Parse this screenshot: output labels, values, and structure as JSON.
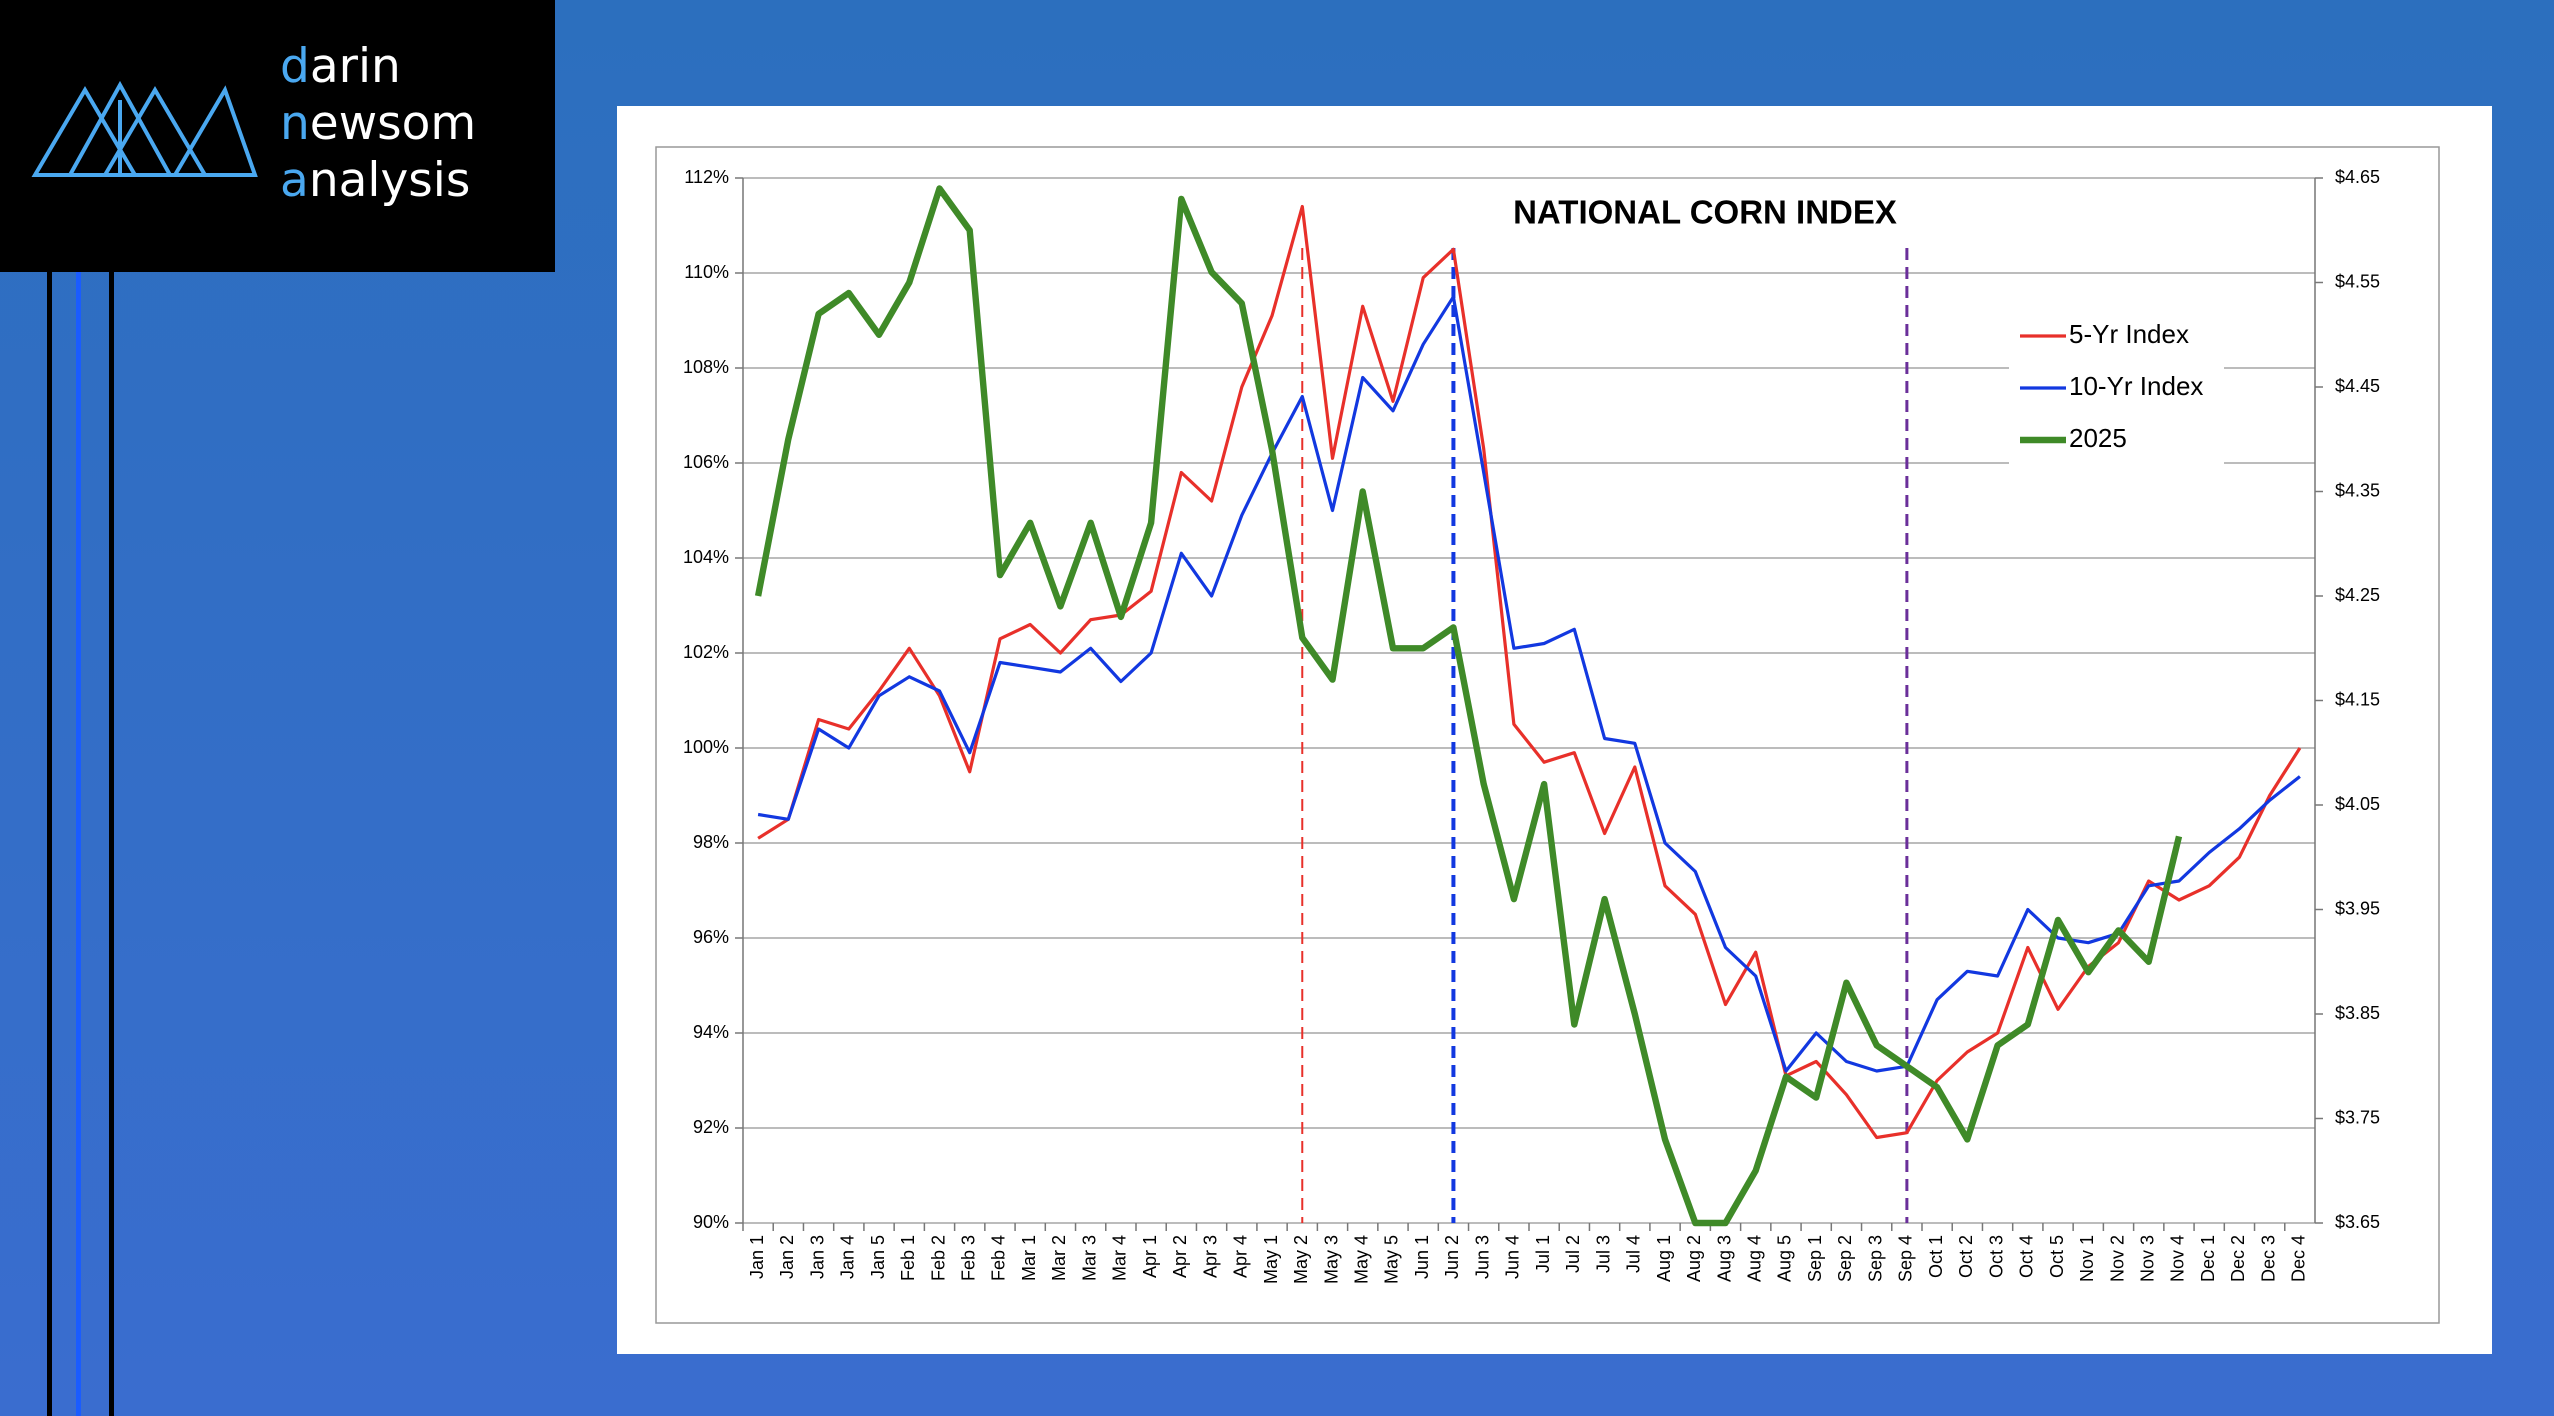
{
  "brand": [
    "darin",
    "newsom",
    "analysis"
  ],
  "chart_data": {
    "type": "line",
    "title": "NATIONAL CORN INDEX",
    "categories": [
      "Jan 1",
      "Jan 2",
      "Jan 3",
      "Jan 4",
      "Jan 5",
      "Feb 1",
      "Feb 2",
      "Feb 3",
      "Feb 4",
      "Mar 1",
      "Mar 2",
      "Mar 3",
      "Mar 4",
      "Apr 1",
      "Apr 2",
      "Apr 3",
      "Apr 4",
      "May 1",
      "May 2",
      "May 3",
      "May 4",
      "May 5",
      "Jun 1",
      "Jun 2",
      "Jun 3",
      "Jun 4",
      "Jul 1",
      "Jul 2",
      "Jul 3",
      "Jul 4",
      "Aug 1",
      "Aug 2",
      "Aug 3",
      "Aug 4",
      "Aug 5",
      "Sep 1",
      "Sep 2",
      "Sep 3",
      "Sep 4",
      "Oct 1",
      "Oct 2",
      "Oct 3",
      "Oct 4",
      "Oct 5",
      "Nov 1",
      "Nov 2",
      "Nov 3",
      "Nov 4",
      "Dec 1",
      "Dec 2",
      "Dec 3",
      "Dec 4"
    ],
    "series": [
      {
        "name": "5-Yr Index",
        "color": "#e8302a",
        "width": 2,
        "values": [
          98.1,
          98.5,
          100.6,
          100.4,
          101.2,
          102.1,
          101.1,
          99.5,
          102.3,
          102.6,
          102.0,
          102.7,
          102.8,
          103.3,
          105.8,
          105.2,
          107.6,
          109.1,
          111.4,
          106.1,
          109.3,
          107.3,
          109.9,
          110.5,
          106.3,
          100.5,
          99.7,
          99.9,
          98.2,
          99.6,
          97.1,
          96.5,
          94.6,
          95.7,
          93.1,
          93.4,
          92.7,
          91.8,
          91.9,
          93.0,
          93.6,
          94.0,
          95.8,
          94.5,
          95.4,
          95.9,
          97.2,
          96.8,
          97.1,
          97.7,
          99.0,
          100.0
        ]
      },
      {
        "name": "10-Yr Index",
        "color": "#1238e0",
        "width": 2,
        "values": [
          98.6,
          98.5,
          100.4,
          100.0,
          101.1,
          101.5,
          101.2,
          99.9,
          101.8,
          101.7,
          101.6,
          102.1,
          101.4,
          102.0,
          104.1,
          103.2,
          104.9,
          106.2,
          107.4,
          105.0,
          107.8,
          107.1,
          108.5,
          109.5,
          105.8,
          102.1,
          102.2,
          102.5,
          100.2,
          100.1,
          98.0,
          97.4,
          95.8,
          95.2,
          93.2,
          94.0,
          93.4,
          93.2,
          93.3,
          94.7,
          95.3,
          95.2,
          96.6,
          96.0,
          95.9,
          96.1,
          97.1,
          97.2,
          97.8,
          98.3,
          98.9,
          99.4
        ]
      },
      {
        "name": "2025",
        "color": "#3f8a28",
        "width": 4,
        "axis": "y2",
        "values": [
          4.25,
          4.4,
          4.52,
          4.54,
          4.5,
          4.55,
          4.64,
          4.6,
          4.27,
          4.32,
          4.24,
          4.32,
          4.23,
          4.32,
          4.63,
          4.56,
          4.53,
          4.39,
          4.21,
          4.17,
          4.35,
          4.2,
          4.2,
          4.22,
          4.07,
          3.96,
          4.07,
          3.84,
          3.96,
          3.85,
          3.73,
          3.65,
          3.65,
          3.7,
          3.79,
          3.77,
          3.88,
          3.82,
          3.8,
          3.78,
          3.73,
          3.82,
          3.84,
          3.94,
          3.89,
          3.93,
          3.9,
          4.02,
          null,
          null,
          null,
          null
        ]
      }
    ],
    "ylim": [
      90,
      112
    ],
    "yticks": [
      {
        "value": 90,
        "label": "90%"
      },
      {
        "value": 92,
        "label": "92%"
      },
      {
        "value": 94,
        "label": "94%"
      },
      {
        "value": 96,
        "label": "96%"
      },
      {
        "value": 98,
        "label": "98%"
      },
      {
        "value": 100,
        "label": "100%"
      },
      {
        "value": 102,
        "label": "102%"
      },
      {
        "value": 104,
        "label": "104%"
      },
      {
        "value": 106,
        "label": "106%"
      },
      {
        "value": 108,
        "label": "108%"
      },
      {
        "value": 110,
        "label": "110%"
      },
      {
        "value": 112,
        "label": "112%"
      }
    ],
    "y2lim": [
      3.65,
      4.65
    ],
    "y2ticks": [
      {
        "value": 3.65,
        "label": "$3.65"
      },
      {
        "value": 3.75,
        "label": "$3.75"
      },
      {
        "value": 3.85,
        "label": "$3.85"
      },
      {
        "value": 3.95,
        "label": "$3.95"
      },
      {
        "value": 4.05,
        "label": "$4.05"
      },
      {
        "value": 4.15,
        "label": "$4.15"
      },
      {
        "value": 4.25,
        "label": "$4.25"
      },
      {
        "value": 4.35,
        "label": "$4.35"
      },
      {
        "value": 4.45,
        "label": "$4.45"
      },
      {
        "value": 4.55,
        "label": "$4.55"
      },
      {
        "value": 4.65,
        "label": "$4.65"
      }
    ],
    "grid": true,
    "legend": "upper right",
    "reference_lines": [
      {
        "at": 18,
        "color": "#e8302a",
        "width": 2
      },
      {
        "at": 23,
        "color": "#1238e0",
        "width": 4
      },
      {
        "at": 38,
        "color": "#6a2f9a",
        "width": 3
      }
    ]
  }
}
